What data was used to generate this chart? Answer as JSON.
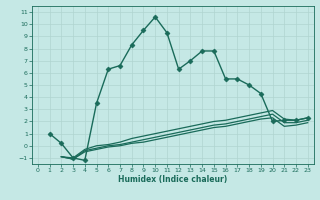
{
  "xlabel": "Humidex (Indice chaleur)",
  "xlim": [
    -0.5,
    23.5
  ],
  "ylim": [
    -1.5,
    11.5
  ],
  "xticks": [
    0,
    1,
    2,
    3,
    4,
    5,
    6,
    7,
    8,
    9,
    10,
    11,
    12,
    13,
    14,
    15,
    16,
    17,
    18,
    19,
    20,
    21,
    22,
    23
  ],
  "yticks": [
    -1,
    0,
    1,
    2,
    3,
    4,
    5,
    6,
    7,
    8,
    9,
    10,
    11
  ],
  "bg_color": "#c5e8e5",
  "line_color": "#1a6b5a",
  "grid_color": "#b0d5d0",
  "lines": [
    {
      "x": [
        1,
        2,
        3,
        4,
        5,
        6,
        7,
        8,
        9,
        10,
        11,
        12,
        13,
        14,
        15,
        16,
        17,
        18,
        19,
        20,
        21,
        22,
        23
      ],
      "y": [
        1.0,
        0.2,
        -1.0,
        -1.2,
        3.5,
        6.3,
        6.6,
        8.3,
        9.5,
        10.6,
        9.3,
        6.3,
        7.0,
        7.8,
        7.8,
        5.5,
        5.5,
        5.0,
        4.3,
        2.0,
        2.1,
        2.1,
        2.3
      ],
      "marker": "D",
      "ms": 2.5,
      "lw": 1.0
    },
    {
      "x": [
        2,
        3,
        4,
        5,
        6,
        7,
        8,
        9,
        10,
        11,
        12,
        13,
        14,
        15,
        16,
        17,
        18,
        19,
        20,
        21,
        22,
        23
      ],
      "y": [
        -0.9,
        -1.0,
        -0.3,
        0.0,
        0.1,
        0.3,
        0.6,
        0.8,
        1.0,
        1.2,
        1.4,
        1.6,
        1.8,
        2.0,
        2.1,
        2.3,
        2.5,
        2.7,
        2.9,
        2.2,
        2.1,
        2.3
      ],
      "marker": null,
      "ms": 0,
      "lw": 0.9
    },
    {
      "x": [
        2,
        3,
        4,
        5,
        6,
        7,
        8,
        9,
        10,
        11,
        12,
        13,
        14,
        15,
        16,
        17,
        18,
        19,
        20,
        21,
        22,
        23
      ],
      "y": [
        -0.9,
        -1.1,
        -0.4,
        -0.2,
        0.0,
        0.1,
        0.3,
        0.5,
        0.7,
        0.9,
        1.1,
        1.3,
        1.5,
        1.7,
        1.8,
        2.0,
        2.2,
        2.4,
        2.6,
        1.9,
        1.9,
        2.1
      ],
      "marker": null,
      "ms": 0,
      "lw": 0.9
    },
    {
      "x": [
        2,
        3,
        4,
        5,
        6,
        7,
        8,
        9,
        10,
        11,
        12,
        13,
        14,
        15,
        16,
        17,
        18,
        19,
        20,
        21,
        22,
        23
      ],
      "y": [
        -0.9,
        -1.1,
        -0.5,
        -0.3,
        -0.1,
        0.0,
        0.2,
        0.3,
        0.5,
        0.7,
        0.9,
        1.1,
        1.3,
        1.5,
        1.6,
        1.8,
        2.0,
        2.2,
        2.3,
        1.6,
        1.7,
        1.9
      ],
      "marker": null,
      "ms": 0,
      "lw": 0.9
    }
  ]
}
